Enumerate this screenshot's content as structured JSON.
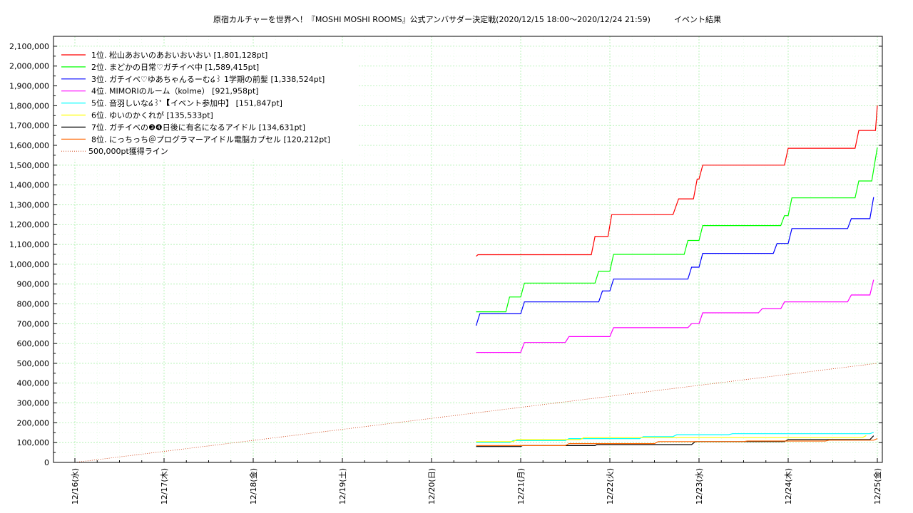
{
  "chart_data": {
    "type": "line",
    "title": "原宿カルチャーを世界へ！『MOSHI MOSHI ROOMS』公式アンバサダー決定戦(2020/12/15 18:00〜2020/12/24 21:59)　　　イベント結果",
    "xlabel": "",
    "ylabel": "",
    "grid": true,
    "legend_position": "top-left",
    "x_range": [
      "2020-12-16 00:00",
      "2020-12-25 00:00"
    ],
    "ylim": [
      0,
      2150000
    ],
    "y_ticks": [
      0,
      100000,
      200000,
      300000,
      400000,
      500000,
      600000,
      700000,
      800000,
      900000,
      1000000,
      1100000,
      1200000,
      1300000,
      1400000,
      1500000,
      1600000,
      1700000,
      1800000,
      1900000,
      2000000,
      2100000
    ],
    "y_tick_labels": [
      "0",
      "100,000",
      "200,000",
      "300,000",
      "400,000",
      "500,000",
      "600,000",
      "700,000",
      "800,000",
      "900,000",
      "1,000,000",
      "1,100,000",
      "1,200,000",
      "1,300,000",
      "1,400,000",
      "1,500,000",
      "1,600,000",
      "1,700,000",
      "1,800,000",
      "1,900,000",
      "2,000,000",
      "2,100,000"
    ],
    "x_ticks": [
      "2020-12-16",
      "2020-12-17",
      "2020-12-18",
      "2020-12-19",
      "2020-12-20",
      "2020-12-21",
      "2020-12-22",
      "2020-12-23",
      "2020-12-24",
      "2020-12-25"
    ],
    "x_tick_labels": [
      "12/16(水)",
      "12/17(木)",
      "12/18(金)",
      "12/19(土)",
      "12/20(日)",
      "12/21(月)",
      "12/22(火)",
      "12/23(水)",
      "12/24(木)",
      "12/25(金)"
    ],
    "series": [
      {
        "name": "1位. 松山あおいのあおいおいおい [1,801,128pt]",
        "color": "#ff0000",
        "points": [
          [
            "2020-12-20 12:00",
            1040000
          ],
          [
            "2020-12-20 12:30",
            1048000
          ],
          [
            "2020-12-21 19:00",
            1048000
          ],
          [
            "2020-12-21 20:00",
            1140000
          ],
          [
            "2020-12-21 23:30",
            1140000
          ],
          [
            "2020-12-22 00:30",
            1250000
          ],
          [
            "2020-12-22 17:00",
            1250000
          ],
          [
            "2020-12-22 18:30",
            1330000
          ],
          [
            "2020-12-22 22:30",
            1330000
          ],
          [
            "2020-12-22 23:30",
            1430000
          ],
          [
            "2020-12-23 00:00",
            1430000
          ],
          [
            "2020-12-23 01:00",
            1500000
          ],
          [
            "2020-12-23 23:00",
            1500000
          ],
          [
            "2020-12-24 00:00",
            1585000
          ],
          [
            "2020-12-24 18:00",
            1585000
          ],
          [
            "2020-12-24 19:00",
            1675000
          ],
          [
            "2020-12-24 23:30",
            1675000
          ],
          [
            "2020-12-25 00:00",
            1801128
          ]
        ]
      },
      {
        "name": "2位. まどかの日常♡ガチイベ中 [1,589,415pt]",
        "color": "#00ff00",
        "points": [
          [
            "2020-12-20 12:00",
            760000
          ],
          [
            "2020-12-20 20:00",
            760000
          ],
          [
            "2020-12-20 21:00",
            835000
          ],
          [
            "2020-12-21 00:00",
            835000
          ],
          [
            "2020-12-21 01:00",
            905000
          ],
          [
            "2020-12-21 20:00",
            905000
          ],
          [
            "2020-12-21 21:00",
            965000
          ],
          [
            "2020-12-22 00:00",
            965000
          ],
          [
            "2020-12-22 01:00",
            1050000
          ],
          [
            "2020-12-22 20:00",
            1050000
          ],
          [
            "2020-12-22 21:00",
            1120000
          ],
          [
            "2020-12-23 00:00",
            1120000
          ],
          [
            "2020-12-23 01:00",
            1195000
          ],
          [
            "2020-12-23 22:00",
            1195000
          ],
          [
            "2020-12-23 23:00",
            1245000
          ],
          [
            "2020-12-24 00:00",
            1245000
          ],
          [
            "2020-12-24 01:00",
            1335000
          ],
          [
            "2020-12-24 18:00",
            1335000
          ],
          [
            "2020-12-24 19:00",
            1420000
          ],
          [
            "2020-12-24 22:30",
            1420000
          ],
          [
            "2020-12-25 00:00",
            1589415
          ]
        ]
      },
      {
        "name": "3位. ガチイベ♡ゆあちゃんるーむ໒꒱ 1学期の前髪 [1,338,524pt]",
        "color": "#0000ff",
        "points": [
          [
            "2020-12-20 12:00",
            690000
          ],
          [
            "2020-12-20 13:00",
            750000
          ],
          [
            "2020-12-21 00:00",
            750000
          ],
          [
            "2020-12-21 01:00",
            810000
          ],
          [
            "2020-12-21 21:00",
            810000
          ],
          [
            "2020-12-21 22:00",
            865000
          ],
          [
            "2020-12-22 00:00",
            865000
          ],
          [
            "2020-12-22 01:00",
            925000
          ],
          [
            "2020-12-22 21:00",
            925000
          ],
          [
            "2020-12-22 22:00",
            985000
          ],
          [
            "2020-12-23 00:00",
            985000
          ],
          [
            "2020-12-23 01:00",
            1055000
          ],
          [
            "2020-12-23 20:00",
            1055000
          ],
          [
            "2020-12-23 21:00",
            1105000
          ],
          [
            "2020-12-24 00:00",
            1105000
          ],
          [
            "2020-12-24 01:00",
            1180000
          ],
          [
            "2020-12-24 16:00",
            1180000
          ],
          [
            "2020-12-24 17:00",
            1230000
          ],
          [
            "2020-12-24 22:00",
            1230000
          ],
          [
            "2020-12-24 23:00",
            1338524
          ]
        ]
      },
      {
        "name": "4位. MIMORIのルーム（kolme） [921,958pt]",
        "color": "#ff00ff",
        "points": [
          [
            "2020-12-20 12:00",
            555000
          ],
          [
            "2020-12-21 00:00",
            555000
          ],
          [
            "2020-12-21 01:00",
            605000
          ],
          [
            "2020-12-21 12:00",
            605000
          ],
          [
            "2020-12-21 13:00",
            635000
          ],
          [
            "2020-12-22 00:00",
            635000
          ],
          [
            "2020-12-22 01:00",
            680000
          ],
          [
            "2020-12-22 21:00",
            680000
          ],
          [
            "2020-12-22 22:00",
            700000
          ],
          [
            "2020-12-23 00:00",
            700000
          ],
          [
            "2020-12-23 01:00",
            755000
          ],
          [
            "2020-12-23 16:00",
            755000
          ],
          [
            "2020-12-23 17:00",
            775000
          ],
          [
            "2020-12-23 22:00",
            775000
          ],
          [
            "2020-12-23 23:00",
            810000
          ],
          [
            "2020-12-24 16:00",
            810000
          ],
          [
            "2020-12-24 17:00",
            845000
          ],
          [
            "2020-12-24 22:00",
            845000
          ],
          [
            "2020-12-24 23:00",
            921958
          ]
        ]
      },
      {
        "name": "5位. 音羽しいな໒꒱ʾ̇ 【イベント参加中】 [151,847pt]",
        "color": "#00ffff",
        "points": [
          [
            "2020-12-20 12:00",
            100000
          ],
          [
            "2020-12-20 21:00",
            100000
          ],
          [
            "2020-12-20 22:00",
            110000
          ],
          [
            "2020-12-21 12:00",
            110000
          ],
          [
            "2020-12-21 13:00",
            120000
          ],
          [
            "2020-12-22 08:00",
            120000
          ],
          [
            "2020-12-22 09:00",
            130000
          ],
          [
            "2020-12-22 17:00",
            130000
          ],
          [
            "2020-12-22 18:00",
            140000
          ],
          [
            "2020-12-23 08:00",
            140000
          ],
          [
            "2020-12-23 09:00",
            145000
          ],
          [
            "2020-12-24 22:00",
            145000
          ],
          [
            "2020-12-24 23:00",
            151847
          ]
        ]
      },
      {
        "name": "6位. ゆいのかくれが [135,533pt]",
        "color": "#ffff00",
        "points": [
          [
            "2020-12-20 12:00",
            105000
          ],
          [
            "2020-12-20 22:00",
            105000
          ],
          [
            "2020-12-20 23:00",
            115000
          ],
          [
            "2020-12-21 16:00",
            115000
          ],
          [
            "2020-12-21 17:00",
            125000
          ],
          [
            "2020-12-23 00:00",
            125000
          ],
          [
            "2020-12-24 20:00",
            125000
          ],
          [
            "2020-12-24 21:00",
            135533
          ]
        ]
      },
      {
        "name": "7位. ガチイベの❸❹日後に有名になるアイドル [134,631pt]",
        "color": "#000000",
        "points": [
          [
            "2020-12-20 12:00",
            80000
          ],
          [
            "2020-12-21 00:00",
            80000
          ],
          [
            "2020-12-21 00:30",
            85000
          ],
          [
            "2020-12-21 20:00",
            85000
          ],
          [
            "2020-12-21 20:30",
            90000
          ],
          [
            "2020-12-22 22:00",
            90000
          ],
          [
            "2020-12-22 23:00",
            105000
          ],
          [
            "2020-12-23 23:00",
            105000
          ],
          [
            "2020-12-24 00:00",
            115000
          ],
          [
            "2020-12-24 22:00",
            115000
          ],
          [
            "2020-12-24 23:00",
            134631
          ]
        ]
      },
      {
        "name": "8位. にっちっち＠プログラマーアイドル電脳カプセル [120,212pt]",
        "color": "#ff6600",
        "points": [
          [
            "2020-12-20 12:00",
            85000
          ],
          [
            "2020-12-21 12:00",
            85000
          ],
          [
            "2020-12-21 13:00",
            95000
          ],
          [
            "2020-12-22 12:00",
            95000
          ],
          [
            "2020-12-22 13:00",
            105000
          ],
          [
            "2020-12-23 12:00",
            105000
          ],
          [
            "2020-12-23 13:00",
            108000
          ],
          [
            "2020-12-24 10:00",
            108000
          ],
          [
            "2020-12-24 11:00",
            112000
          ],
          [
            "2020-12-24 23:00",
            112000
          ],
          [
            "2020-12-25 00:00",
            120212
          ]
        ]
      },
      {
        "name": "500,000pt獲得ライン",
        "color": "#cc3300",
        "dashed": true,
        "points": [
          [
            "2020-12-16 00:00",
            0
          ],
          [
            "2020-12-25 00:00",
            500000
          ]
        ]
      }
    ]
  }
}
